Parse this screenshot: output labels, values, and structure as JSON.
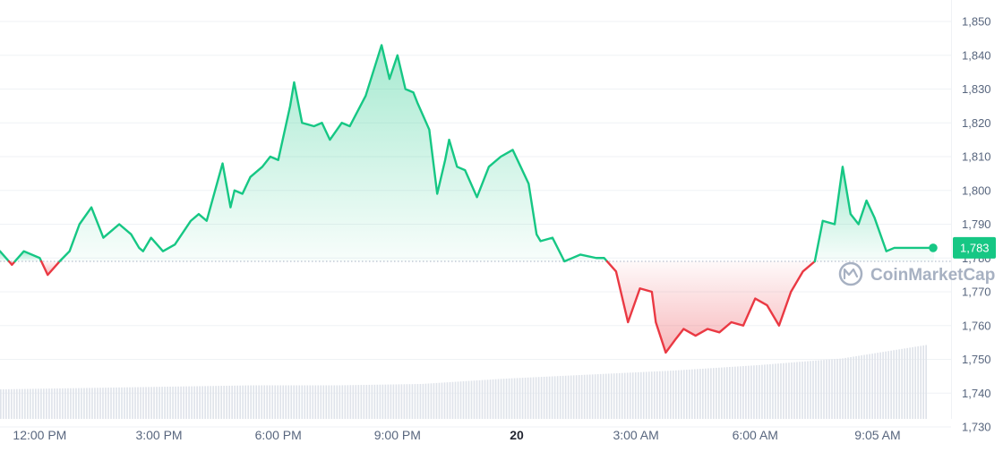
{
  "chart_data": {
    "type": "area",
    "title": "",
    "xlabel": "",
    "ylabel": "",
    "ylim": [
      1725,
      1855
    ],
    "baseline": 1779,
    "current_price": 1783,
    "current_price_label": "1,783",
    "y_ticks": [
      1730,
      1740,
      1750,
      1760,
      1770,
      1780,
      1790,
      1800,
      1810,
      1820,
      1830,
      1840,
      1850
    ],
    "y_tick_labels": [
      "1,730",
      "1,740",
      "1,750",
      "1,760",
      "1,770",
      "1,780",
      "1,790",
      "1,800",
      "1,810",
      "1,820",
      "1,830",
      "1,840",
      "1,850"
    ],
    "x_range_hours": [
      11,
      34.5
    ],
    "x_ticks": [
      {
        "hour": 12,
        "label": "12:00 PM",
        "bold": false
      },
      {
        "hour": 15,
        "label": "3:00 PM",
        "bold": false
      },
      {
        "hour": 18,
        "label": "6:00 PM",
        "bold": false
      },
      {
        "hour": 21,
        "label": "9:00 PM",
        "bold": false
      },
      {
        "hour": 24,
        "label": "20",
        "bold": true
      },
      {
        "hour": 27,
        "label": "3:00 AM",
        "bold": false
      },
      {
        "hour": 30,
        "label": "6:00 AM",
        "bold": false
      },
      {
        "hour": 33.08,
        "label": "9:05 AM",
        "bold": false
      }
    ],
    "series": [
      {
        "x": [
          11.0,
          11.3,
          11.6,
          12.0,
          12.2,
          12.5,
          12.75,
          13.0,
          13.3,
          13.6,
          14.0,
          14.3,
          14.5,
          14.6,
          14.8,
          15.1,
          15.4,
          15.8,
          16.0,
          16.2,
          16.6,
          16.8,
          16.9,
          17.1,
          17.3,
          17.6,
          17.8,
          18.0,
          18.3,
          18.4,
          18.6,
          18.9,
          19.1,
          19.3,
          19.6,
          19.8,
          20.2,
          20.6,
          20.8,
          21.0,
          21.2,
          21.4,
          21.5,
          21.8,
          22.0,
          22.2,
          22.3,
          22.5,
          22.7,
          23.0,
          23.3,
          23.6,
          23.9,
          24.1,
          24.3,
          24.5,
          24.6,
          24.9,
          25.2,
          25.6,
          26.0,
          26.2,
          26.5,
          26.8,
          27.1,
          27.4,
          27.5,
          27.75,
          28.0,
          28.2,
          28.5,
          28.8,
          29.1,
          29.4,
          29.7,
          30.0,
          30.3,
          30.6,
          30.9,
          31.2,
          31.5,
          31.7,
          32.0,
          32.2,
          32.4,
          32.6,
          32.8,
          33.0,
          33.3,
          33.5,
          33.8,
          34.0,
          34.2,
          34.3,
          34.5
        ],
        "values": [
          1782,
          1778,
          1782,
          1780,
          1775,
          1779,
          1782,
          1790,
          1795,
          1786,
          1790,
          1787,
          1783,
          1782,
          1786,
          1782,
          1784,
          1791,
          1793,
          1791,
          1808,
          1795,
          1800,
          1799,
          1804,
          1807,
          1810,
          1809,
          1825,
          1832,
          1820,
          1819,
          1820,
          1815,
          1820,
          1819,
          1828,
          1843,
          1833,
          1840,
          1830,
          1829,
          1826,
          1818,
          1799,
          1809,
          1815,
          1807,
          1806,
          1798,
          1807,
          1810,
          1812,
          1807,
          1802,
          1787,
          1785,
          1786,
          1779,
          1781,
          1780,
          1780,
          1776,
          1761,
          1771,
          1770,
          1761,
          1752,
          1756,
          1759,
          1757,
          1759,
          1758,
          1761,
          1760,
          1768,
          1766,
          1760,
          1770,
          1776,
          1779,
          1791,
          1790,
          1807,
          1793,
          1790,
          1797,
          1792,
          1782,
          1783,
          1783,
          1783,
          1783,
          1783,
          1783
        ]
      }
    ],
    "volume": {
      "x_start_hour": 11,
      "x_end_hour": 34.35,
      "bar_count": 345,
      "relative_levels": [
        0.22,
        0.23,
        0.24,
        0.25,
        0.25,
        0.26,
        0.3,
        0.33,
        0.36,
        0.4,
        0.45,
        0.55
      ]
    },
    "colors": {
      "up": "#16c784",
      "down": "#ea3943",
      "volume": "#dfe3ea",
      "grid": "#eff2f5",
      "baseline": "#a6b0c3",
      "axis_text": "#58667e",
      "watermark": "#a7b1c2"
    },
    "grid": true
  },
  "watermark_text": "CoinMarketCap"
}
